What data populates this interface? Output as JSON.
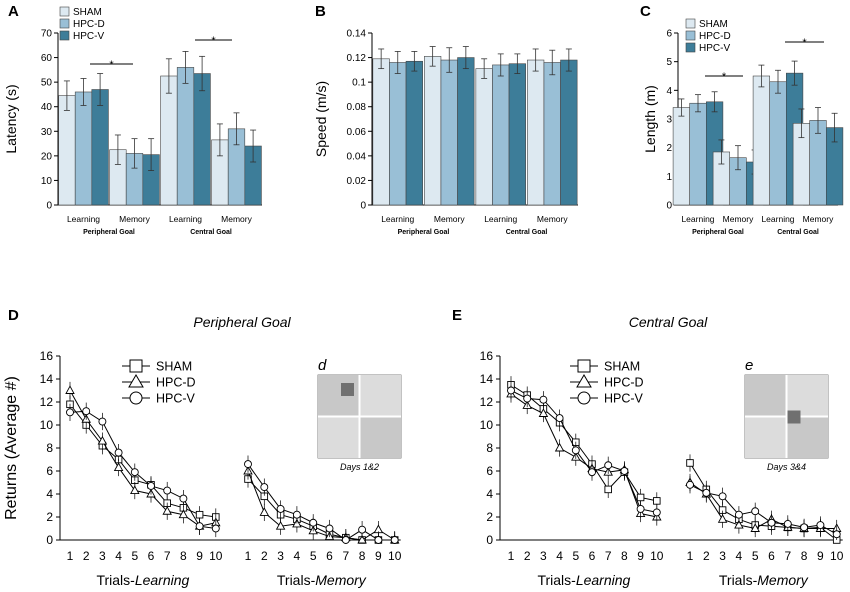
{
  "colors": {
    "sham": "#dde9f1",
    "hpc_d": "#99bfd6",
    "hpc_v": "#3d7d99"
  },
  "chart_data": [
    {
      "id": "A",
      "type": "bar",
      "panel_label": "A",
      "ylabel": "Latency (s)",
      "ylim": [
        0,
        70
      ],
      "yticks": [
        0,
        10,
        20,
        30,
        40,
        50,
        60,
        70
      ],
      "groups": [
        "Learning",
        "Memory",
        "Learning",
        "Memory"
      ],
      "supergroups": [
        "Peripheral Goal",
        "Central Goal"
      ],
      "legend": [
        "SHAM",
        "HPC-D",
        "HPC-V"
      ],
      "series": [
        {
          "name": "SHAM",
          "values": [
            44.5,
            22.5,
            52.5,
            26.5
          ],
          "errors": [
            6,
            6,
            7,
            6.5
          ]
        },
        {
          "name": "HPC-D",
          "values": [
            46,
            21,
            56,
            31
          ],
          "errors": [
            5.5,
            6,
            6.5,
            6.5
          ]
        },
        {
          "name": "HPC-V",
          "values": [
            47,
            20.5,
            53.5,
            24
          ],
          "errors": [
            6.5,
            6.5,
            7,
            6.5
          ]
        }
      ],
      "significance": [
        "*",
        "*"
      ]
    },
    {
      "id": "B",
      "type": "bar",
      "panel_label": "B",
      "ylabel": "Speed (m/s)",
      "ylim": [
        0,
        0.14
      ],
      "yticks": [
        0,
        0.02,
        0.04,
        0.06,
        0.08,
        0.1,
        0.12,
        0.14
      ],
      "groups": [
        "Learning",
        "Memory",
        "Learning",
        "Memory"
      ],
      "supergroups": [
        "Peripheral Goal",
        "Central Goal"
      ],
      "series": [
        {
          "name": "SHAM",
          "values": [
            0.119,
            0.121,
            0.111,
            0.118
          ],
          "errors": [
            0.008,
            0.008,
            0.008,
            0.009
          ]
        },
        {
          "name": "HPC-D",
          "values": [
            0.116,
            0.118,
            0.114,
            0.116
          ],
          "errors": [
            0.009,
            0.01,
            0.009,
            0.01
          ]
        },
        {
          "name": "HPC-V",
          "values": [
            0.117,
            0.12,
            0.115,
            0.118
          ],
          "errors": [
            0.008,
            0.009,
            0.008,
            0.009
          ]
        }
      ]
    },
    {
      "id": "C",
      "type": "bar",
      "panel_label": "C",
      "ylabel": "Length (m)",
      "ylim": [
        0,
        6
      ],
      "yticks": [
        0,
        1,
        2,
        3,
        4,
        5,
        6
      ],
      "groups": [
        "Learning",
        "Memory",
        "Learning",
        "Memory"
      ],
      "supergroups": [
        "Peripheral Goal",
        "Central Goal"
      ],
      "legend": [
        "SHAM",
        "HPC-D",
        "HPC-V"
      ],
      "series": [
        {
          "name": "SHAM",
          "values": [
            3.4,
            1.85,
            4.5,
            2.85
          ],
          "errors": [
            0.3,
            0.42,
            0.38,
            0.5
          ]
        },
        {
          "name": "HPC-D",
          "values": [
            3.55,
            1.65,
            4.3,
            2.95
          ],
          "errors": [
            0.3,
            0.42,
            0.4,
            0.45
          ]
        },
        {
          "name": "HPC-V",
          "values": [
            3.6,
            1.5,
            4.6,
            2.7
          ],
          "errors": [
            0.35,
            0.42,
            0.42,
            0.5
          ]
        }
      ],
      "significance": [
        "*",
        "*"
      ]
    },
    {
      "id": "D",
      "type": "line",
      "panel_label": "D",
      "title": "Peripheral Goal",
      "ylabel": "Returns (Average #)",
      "ylim": [
        0,
        16
      ],
      "yticks": [
        0,
        2,
        4,
        6,
        8,
        10,
        12,
        14,
        16
      ],
      "x": [
        1,
        2,
        3,
        4,
        5,
        6,
        7,
        8,
        9,
        10
      ],
      "xlabel_learning_prefix": "Trials-",
      "xlabel_learning_italic": "Learning",
      "xlabel_memory_prefix": "Trials-",
      "xlabel_memory_italic": "Memory",
      "legend": [
        "SHAM",
        "HPC-D",
        "HPC-V"
      ],
      "inset_label": "d",
      "inset_caption": "Days 1&2",
      "inset_target": "top-left",
      "series": [
        {
          "name": "SHAM",
          "marker": "square",
          "learning": [
            11.8,
            10.0,
            8.2,
            7.0,
            5.2,
            4.8,
            3.2,
            2.8,
            2.2,
            2.0
          ],
          "memory": [
            5.3,
            3.8,
            2.2,
            1.8,
            1.2,
            0.5,
            0.2,
            0.0,
            0.0,
            0.0
          ]
        },
        {
          "name": "HPC-D",
          "marker": "triangle",
          "learning": [
            13.0,
            10.5,
            8.6,
            6.3,
            4.3,
            4.0,
            2.5,
            2.2,
            1.2,
            1.5
          ],
          "memory": [
            6.0,
            2.4,
            1.2,
            1.4,
            0.8,
            0.3,
            0.2,
            0.0,
            0.9,
            0.0
          ]
        },
        {
          "name": "HPC-V",
          "marker": "circle",
          "learning": [
            11.1,
            11.2,
            10.3,
            7.6,
            5.9,
            4.7,
            4.3,
            3.6,
            1.2,
            1.0
          ],
          "memory": [
            6.6,
            4.6,
            2.7,
            2.2,
            1.5,
            1.0,
            0.0,
            0.9,
            0.0,
            0.0
          ]
        }
      ]
    },
    {
      "id": "E",
      "type": "line",
      "panel_label": "E",
      "title": "Central Goal",
      "ylabel": "",
      "ylim": [
        0,
        16
      ],
      "yticks": [
        0,
        2,
        4,
        6,
        8,
        10,
        12,
        14,
        16
      ],
      "x": [
        1,
        2,
        3,
        4,
        5,
        6,
        7,
        8,
        9,
        10
      ],
      "xlabel_learning_prefix": "Trials-",
      "xlabel_learning_italic": "Learning",
      "xlabel_memory_prefix": "Trials-",
      "xlabel_memory_italic": "Memory",
      "legend": [
        "SHAM",
        "HPC-D",
        "HPC-V"
      ],
      "inset_label": "e",
      "inset_caption": "Days 3&4",
      "inset_target": "center",
      "series": [
        {
          "name": "SHAM",
          "marker": "square",
          "learning": [
            13.5,
            12.6,
            11.4,
            10.2,
            8.5,
            6.6,
            4.4,
            5.9,
            3.7,
            3.4
          ],
          "memory": [
            6.7,
            4.4,
            2.6,
            1.8,
            1.3,
            1.2,
            1.1,
            1.0,
            1.1,
            0.0
          ]
        },
        {
          "name": "HPC-D",
          "marker": "triangle",
          "learning": [
            12.7,
            11.7,
            11.0,
            8.0,
            7.2,
            6.2,
            5.9,
            6.1,
            2.3,
            2.0
          ],
          "memory": [
            5.0,
            4.0,
            1.8,
            1.3,
            1.0,
            1.8,
            1.1,
            1.0,
            1.0,
            1.0
          ]
        },
        {
          "name": "HPC-V",
          "marker": "circle",
          "learning": [
            13.0,
            12.3,
            12.2,
            10.6,
            7.8,
            5.9,
            6.5,
            6.0,
            2.7,
            2.4
          ],
          "memory": [
            4.8,
            4.1,
            3.8,
            2.2,
            2.5,
            1.5,
            1.4,
            1.1,
            1.3,
            0.5
          ]
        }
      ]
    }
  ]
}
